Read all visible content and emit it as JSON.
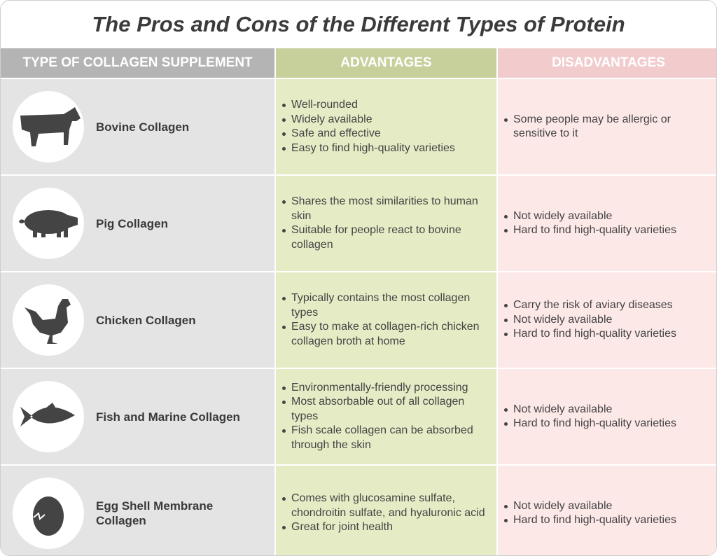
{
  "title": "The Pros and Cons of the Different Types of Protein",
  "table": {
    "header": [
      "TYPE OF COLLAGEN SUPPLEMENT",
      "ADVANTAGES",
      "DISADVANTAGES"
    ],
    "rows": [
      {
        "name": "Bovine Collagen",
        "advantages": [
          "Well-rounded",
          "Widely available",
          "Safe and effective",
          "Easy to find high-quality varieties"
        ],
        "disadvantages": [
          "Some people may be allergic or sensitive to it"
        ]
      },
      {
        "name": "Pig Collagen",
        "advantages": [
          "Shares the most similarities to human skin",
          "Suitable for people react to bovine collagen"
        ],
        "disadvantages": [
          "Not widely available",
          "Hard to find high-quality varieties"
        ]
      },
      {
        "name": "Chicken Collagen",
        "advantages": [
          "Typically contains the most collagen types",
          "Easy to make at collagen-rich chicken collagen broth at home"
        ],
        "disadvantages": [
          "Carry the risk of aviary diseases",
          "Not widely available",
          "Hard to find high-quality varieties"
        ]
      },
      {
        "name": "Fish and Marine Collagen",
        "advantages": [
          "Environmentally-friendly processing",
          "Most absorbable out of all collagen types",
          "Fish scale collagen can be absorbed through the skin"
        ],
        "disadvantages": [
          "Not widely available",
          "Hard to find high-quality varieties"
        ]
      },
      {
        "name": "Egg Shell Membrane Collagen",
        "advantages": [
          "Comes with glucosamine sulfate, chondroitin sulfate, and hyaluronic acid",
          "Great for joint health"
        ],
        "disadvantages": [
          "Not widely available",
          "Hard to find high-quality varieties"
        ]
      }
    ]
  }
}
